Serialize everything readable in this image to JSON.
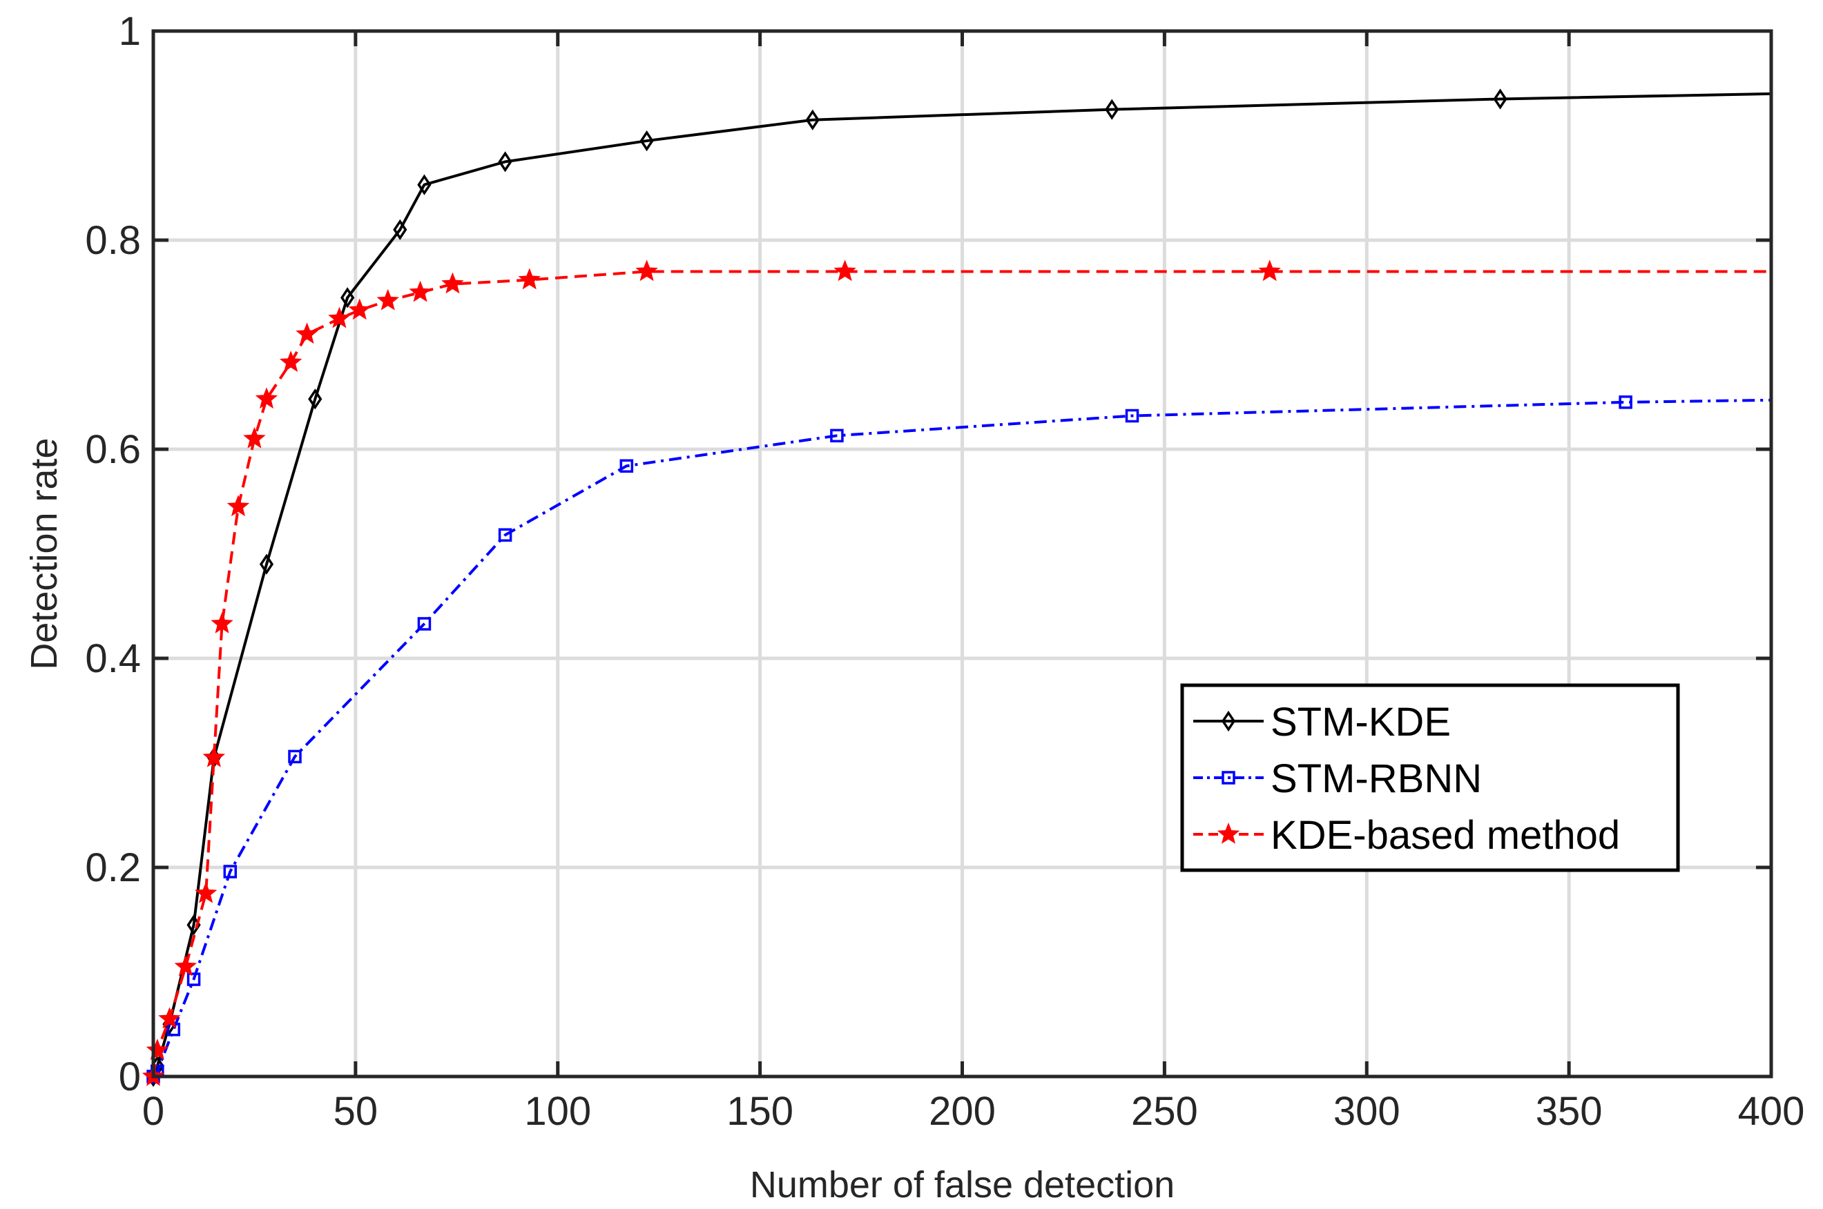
{
  "chart_data": {
    "type": "line",
    "title": "",
    "xlabel": "Number of false detection",
    "ylabel": "Detection rate",
    "xlim": [
      0,
      400
    ],
    "ylim": [
      0,
      1
    ],
    "xticks": [
      0,
      50,
      100,
      150,
      200,
      250,
      300,
      350,
      400
    ],
    "yticks": [
      0,
      0.2,
      0.4,
      0.6,
      0.8,
      1
    ],
    "xtick_labels": [
      "0",
      "50",
      "100",
      "150",
      "200",
      "250",
      "300",
      "350",
      "400"
    ],
    "ytick_labels": [
      "0",
      "0.2",
      "0.4",
      "0.6",
      "0.8",
      "1"
    ],
    "grid": true,
    "legend_position": "lower-right",
    "series": [
      {
        "name": "STM-KDE",
        "color": "#000000",
        "line_style": "solid",
        "marker": "diamond",
        "x": [
          0,
          1,
          4,
          10,
          15,
          28,
          40,
          48,
          61,
          67,
          87,
          122,
          163,
          237,
          333,
          400
        ],
        "y": [
          0,
          0.01,
          0.05,
          0.145,
          0.305,
          0.49,
          0.648,
          0.745,
          0.81,
          0.853,
          0.875,
          0.895,
          0.915,
          0.925,
          0.935,
          0.94
        ]
      },
      {
        "name": "STM-RBNN",
        "color": "#0000ff",
        "line_style": "dashdot",
        "marker": "square",
        "x": [
          0,
          1,
          5,
          10,
          19,
          35,
          67,
          87,
          117,
          169,
          242,
          364,
          400
        ],
        "y": [
          0,
          0.005,
          0.045,
          0.093,
          0.196,
          0.306,
          0.433,
          0.518,
          0.584,
          0.613,
          0.632,
          0.645,
          0.647
        ]
      },
      {
        "name": "KDE-based method",
        "color": "#ff0000",
        "line_style": "dashed",
        "marker": "star",
        "x": [
          0,
          1,
          4,
          8,
          13,
          15,
          17,
          21,
          25,
          28,
          34,
          38,
          46,
          51,
          58,
          66,
          74,
          93,
          122,
          171,
          276,
          400
        ],
        "y": [
          0,
          0.025,
          0.055,
          0.105,
          0.175,
          0.305,
          0.433,
          0.545,
          0.61,
          0.648,
          0.683,
          0.71,
          0.725,
          0.733,
          0.742,
          0.75,
          0.758,
          0.762,
          0.77,
          0.77,
          0.77,
          0.77
        ]
      }
    ]
  }
}
